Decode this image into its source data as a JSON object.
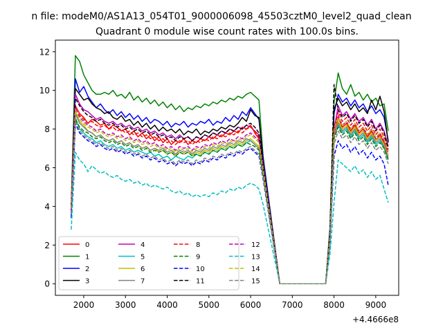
{
  "figure": {
    "suptitle": "n file: modeM0/AS1A13_054T01_9000006098_45503cztM0_level2_quad_clean",
    "title": "Quadrant 0 module wise count rates with 100.0s bins.",
    "offset_label": "+4.4666e8"
  },
  "chart_data": {
    "type": "line",
    "title": "Quadrant 0 module wise count rates with 100.0s bins.",
    "xlabel": "",
    "ylabel": "",
    "x_offset": 446660000,
    "xlim": [
      1320,
      9550
    ],
    "ylim": [
      -0.6,
      12.6
    ],
    "xticks": [
      2000,
      3000,
      4000,
      5000,
      6000,
      7000,
      8000,
      9000
    ],
    "yticks": [
      0,
      2,
      4,
      6,
      8,
      10,
      12
    ],
    "x_start": 1700,
    "x_step": 100,
    "gap": {
      "from": 6700,
      "to": 7800,
      "value": 0
    },
    "grid": false,
    "legend": {
      "placement": "lower-left",
      "columns": 4
    },
    "series": [
      {
        "name": "0",
        "color": "#ff0000",
        "dash": "solid",
        "seg1": [
          3.8,
          9.2,
          8.8,
          8.6,
          8.3,
          8.5,
          8.4,
          8.2,
          8.3,
          8.0,
          8.2,
          8.1,
          7.9,
          8.0,
          7.7,
          7.9,
          7.6,
          7.8,
          7.5,
          7.7,
          7.4,
          7.6,
          7.3,
          7.5,
          7.2,
          7.4,
          7.3,
          7.5,
          7.2,
          7.4,
          7.3,
          7.5,
          7.4,
          7.6,
          7.5,
          7.7,
          7.6,
          7.8,
          7.7,
          7.9,
          7.8,
          8.1,
          8.0,
          8.2,
          7.8,
          7.5,
          6.0
        ],
        "seg2": [
          2.3,
          7.6,
          8.6,
          8.1,
          8.3,
          7.9,
          8.2,
          7.8,
          8.0,
          7.6,
          7.9,
          7.4,
          7.7,
          7.3,
          6.8
        ]
      },
      {
        "name": "1",
        "color": "#008000",
        "dash": "solid",
        "seg1": [
          4.1,
          11.8,
          11.5,
          10.8,
          10.4,
          10.0,
          9.8,
          9.8,
          9.9,
          9.8,
          10.0,
          9.7,
          9.8,
          9.6,
          9.9,
          9.5,
          9.7,
          9.4,
          9.6,
          9.3,
          9.5,
          9.2,
          9.4,
          9.1,
          9.3,
          9.0,
          9.2,
          8.9,
          9.1,
          9.0,
          9.2,
          9.1,
          9.3,
          9.2,
          9.4,
          9.3,
          9.5,
          9.4,
          9.6,
          9.5,
          9.7,
          9.6,
          9.8,
          9.9,
          9.7,
          9.5,
          6.6
        ],
        "seg2": [
          2.9,
          9.4,
          10.9,
          10.1,
          9.8,
          10.3,
          9.7,
          9.9,
          9.5,
          9.8,
          9.4,
          9.6,
          9.2,
          9.3,
          7.9
        ]
      },
      {
        "name": "2",
        "color": "#0000ff",
        "dash": "solid",
        "seg1": [
          3.6,
          10.6,
          9.9,
          10.2,
          9.7,
          9.4,
          9.1,
          9.3,
          9.0,
          8.8,
          9.0,
          8.7,
          8.9,
          8.6,
          8.8,
          8.5,
          8.7,
          8.4,
          8.6,
          8.3,
          8.5,
          8.4,
          8.2,
          8.4,
          8.1,
          8.3,
          8.2,
          8.4,
          8.1,
          8.3,
          8.2,
          8.4,
          8.3,
          8.5,
          8.2,
          8.4,
          8.3,
          8.6,
          8.4,
          8.7,
          8.5,
          8.9,
          8.7,
          9.1,
          8.8,
          8.5,
          6.5
        ],
        "seg2": [
          2.7,
          8.8,
          9.8,
          9.4,
          9.6,
          9.2,
          9.5,
          9.1,
          9.3,
          8.9,
          9.2,
          8.8,
          9.0,
          8.6,
          7.4
        ]
      },
      {
        "name": "3",
        "color": "#000000",
        "dash": "solid",
        "seg1": [
          4.0,
          10.1,
          9.8,
          9.5,
          9.6,
          9.3,
          9.1,
          9.0,
          8.8,
          8.9,
          8.6,
          8.5,
          8.7,
          8.4,
          8.5,
          8.2,
          8.4,
          8.1,
          8.3,
          8.0,
          8.2,
          7.9,
          8.1,
          7.9,
          8.0,
          7.8,
          8.0,
          7.7,
          7.9,
          7.8,
          8.0,
          7.7,
          7.9,
          7.8,
          8.0,
          7.9,
          8.1,
          8.0,
          8.2,
          8.1,
          8.3,
          8.6,
          8.4,
          9.0,
          8.7,
          8.6,
          6.3
        ],
        "seg2": [
          2.6,
          9.0,
          9.6,
          9.2,
          9.4,
          9.0,
          9.3,
          8.9,
          9.1,
          8.8,
          9.5,
          9.0,
          9.7,
          8.9,
          7.3
        ]
      },
      {
        "name": "4",
        "color": "#bf00bf",
        "dash": "solid",
        "seg1": [
          3.9,
          9.8,
          9.3,
          9.0,
          8.9,
          8.7,
          8.5,
          8.6,
          8.4,
          8.3,
          8.4,
          8.2,
          8.3,
          8.1,
          8.2,
          8.0,
          8.1,
          7.9,
          8.0,
          7.8,
          7.9,
          7.7,
          7.8,
          7.6,
          7.7,
          7.5,
          7.7,
          7.5,
          7.6,
          7.4,
          7.6,
          7.5,
          7.7,
          7.6,
          7.8,
          7.7,
          7.9,
          7.8,
          8.0,
          7.9,
          8.1,
          8.0,
          8.2,
          8.1,
          7.9,
          7.7,
          6.2
        ],
        "seg2": [
          2.5,
          8.0,
          9.2,
          8.7,
          8.9,
          8.5,
          8.8,
          8.4,
          8.6,
          8.2,
          8.5,
          8.0,
          8.3,
          7.9,
          7.1
        ]
      },
      {
        "name": "5",
        "color": "#00bfbf",
        "dash": "solid",
        "seg1": [
          3.5,
          8.6,
          8.0,
          7.8,
          7.6,
          7.5,
          7.3,
          7.4,
          7.2,
          7.1,
          7.2,
          7.0,
          7.1,
          6.9,
          7.0,
          6.8,
          6.9,
          6.8,
          6.7,
          6.8,
          6.6,
          6.7,
          6.5,
          6.6,
          6.4,
          6.6,
          6.5,
          6.4,
          6.6,
          6.5,
          6.7,
          6.6,
          6.8,
          6.7,
          6.9,
          6.8,
          7.0,
          6.9,
          7.1,
          7.0,
          7.2,
          7.1,
          7.3,
          7.4,
          7.2,
          7.0,
          5.6
        ],
        "seg2": [
          2.2,
          7.6,
          8.2,
          7.8,
          8.0,
          7.6,
          7.9,
          7.5,
          7.7,
          7.3,
          7.6,
          7.2,
          7.4,
          7.0,
          6.4
        ]
      },
      {
        "name": "6",
        "color": "#bfbf00",
        "dash": "solid",
        "seg1": [
          3.7,
          8.9,
          8.4,
          8.2,
          7.9,
          7.8,
          7.6,
          7.7,
          7.5,
          7.4,
          7.5,
          7.3,
          7.4,
          7.2,
          7.3,
          7.1,
          7.2,
          7.0,
          7.1,
          6.9,
          7.0,
          6.8,
          6.9,
          6.7,
          6.8,
          6.6,
          6.8,
          6.7,
          6.8,
          6.6,
          6.8,
          6.7,
          6.9,
          6.8,
          7.0,
          6.9,
          7.1,
          7.0,
          7.2,
          7.1,
          7.3,
          7.2,
          7.4,
          7.5,
          7.3,
          7.1,
          5.8
        ],
        "seg2": [
          2.3,
          7.7,
          8.4,
          8.0,
          8.2,
          7.8,
          8.1,
          7.7,
          7.9,
          7.5,
          7.8,
          7.4,
          7.6,
          7.2,
          6.6
        ]
      },
      {
        "name": "7",
        "color": "#808080",
        "dash": "solid",
        "seg1": [
          3.8,
          8.8,
          8.3,
          8.1,
          7.9,
          7.8,
          7.6,
          7.7,
          7.5,
          7.4,
          7.5,
          7.3,
          7.4,
          7.2,
          7.3,
          7.1,
          7.2,
          7.0,
          7.1,
          6.9,
          7.0,
          6.9,
          7.0,
          6.8,
          6.9,
          6.7,
          6.9,
          6.8,
          6.9,
          6.7,
          6.9,
          6.8,
          7.0,
          6.9,
          7.1,
          7.0,
          7.2,
          7.1,
          7.3,
          7.2,
          7.4,
          7.3,
          7.5,
          7.4,
          7.2,
          7.0,
          5.7
        ],
        "seg2": [
          2.2,
          7.6,
          8.3,
          7.9,
          8.1,
          7.7,
          8.0,
          7.6,
          7.8,
          7.4,
          7.7,
          7.3,
          7.5,
          7.1,
          6.5
        ]
      },
      {
        "name": "8",
        "color": "#ff0000",
        "dash": "dashed",
        "seg1": [
          3.9,
          9.0,
          8.7,
          8.5,
          8.3,
          8.4,
          8.2,
          8.1,
          8.2,
          8.0,
          8.1,
          7.9,
          8.0,
          7.8,
          7.9,
          7.7,
          7.8,
          7.6,
          7.7,
          7.5,
          7.6,
          7.4,
          7.5,
          7.3,
          7.4,
          7.2,
          7.4,
          7.3,
          7.4,
          7.2,
          7.4,
          7.3,
          7.5,
          7.4,
          7.6,
          7.5,
          7.7,
          7.6,
          7.8,
          7.7,
          7.9,
          7.8,
          8.0,
          8.1,
          7.9,
          7.6,
          6.0
        ],
        "seg2": [
          2.4,
          7.9,
          8.9,
          8.4,
          8.6,
          8.2,
          8.5,
          8.1,
          8.3,
          7.9,
          8.2,
          7.7,
          8.0,
          7.6,
          6.9
        ]
      },
      {
        "name": "9",
        "color": "#008000",
        "dash": "dashed",
        "seg1": [
          3.7,
          8.5,
          8.1,
          7.9,
          7.8,
          7.6,
          7.5,
          7.6,
          7.4,
          7.3,
          7.4,
          7.2,
          7.3,
          7.1,
          7.2,
          7.0,
          7.1,
          6.9,
          7.0,
          6.8,
          6.9,
          6.8,
          6.9,
          6.7,
          6.8,
          6.6,
          6.8,
          6.7,
          6.8,
          6.6,
          6.7,
          6.6,
          6.8,
          6.7,
          6.9,
          6.8,
          7.0,
          6.9,
          7.1,
          7.0,
          7.2,
          7.1,
          7.3,
          7.2,
          7.1,
          6.9,
          5.7
        ],
        "seg2": [
          2.2,
          7.5,
          8.1,
          7.7,
          7.9,
          7.5,
          7.8,
          7.4,
          7.6,
          7.2,
          7.5,
          7.1,
          7.3,
          7.0,
          6.4
        ]
      },
      {
        "name": "10",
        "color": "#0000ff",
        "dash": "dashed",
        "seg1": [
          3.4,
          8.3,
          7.8,
          7.6,
          7.4,
          7.3,
          7.1,
          7.2,
          7.0,
          6.9,
          7.0,
          6.8,
          6.9,
          6.7,
          6.8,
          6.6,
          6.7,
          6.5,
          6.6,
          6.4,
          6.5,
          6.3,
          6.4,
          6.2,
          6.3,
          6.1,
          6.3,
          6.2,
          6.3,
          6.1,
          6.3,
          6.2,
          6.4,
          6.3,
          6.5,
          6.4,
          6.6,
          6.5,
          6.7,
          6.6,
          6.8,
          6.7,
          6.9,
          7.0,
          6.8,
          6.6,
          5.4
        ],
        "seg2": [
          2.0,
          6.6,
          7.4,
          7.0,
          7.2,
          6.8,
          7.1,
          6.7,
          6.9,
          6.5,
          6.8,
          6.4,
          6.6,
          6.2,
          5.1
        ]
      },
      {
        "name": "11",
        "color": "#000000",
        "dash": "dashed",
        "seg1": [
          4.0,
          9.6,
          9.2,
          8.9,
          8.7,
          8.6,
          8.4,
          8.5,
          8.3,
          8.2,
          8.3,
          8.1,
          8.2,
          8.0,
          8.1,
          7.9,
          8.0,
          7.8,
          7.9,
          7.7,
          7.8,
          7.6,
          7.7,
          7.5,
          7.6,
          7.4,
          7.6,
          7.5,
          7.6,
          7.4,
          7.6,
          7.5,
          7.7,
          7.6,
          7.8,
          7.7,
          7.9,
          7.8,
          8.0,
          7.9,
          8.1,
          8.0,
          8.2,
          8.3,
          8.1,
          7.8,
          6.1
        ],
        "seg2": [
          2.5,
          10.3,
          9.0,
          8.6,
          8.8,
          8.4,
          8.7,
          8.3,
          8.5,
          8.1,
          8.4,
          7.9,
          8.2,
          7.8,
          7.0
        ]
      },
      {
        "name": "12",
        "color": "#bf00bf",
        "dash": "dashed",
        "seg1": [
          3.8,
          9.1,
          8.6,
          8.4,
          8.2,
          8.1,
          7.9,
          8.0,
          7.8,
          7.7,
          7.8,
          7.6,
          7.7,
          7.5,
          7.6,
          7.4,
          7.5,
          7.3,
          7.4,
          7.2,
          7.3,
          7.1,
          7.2,
          7.0,
          7.1,
          6.9,
          7.1,
          7.0,
          7.1,
          6.9,
          7.1,
          7.0,
          7.2,
          7.1,
          7.3,
          7.2,
          7.4,
          7.3,
          7.5,
          7.4,
          7.6,
          7.5,
          7.7,
          7.8,
          7.6,
          7.4,
          5.9
        ],
        "seg2": [
          2.4,
          7.8,
          8.7,
          8.2,
          8.4,
          8.0,
          8.3,
          7.9,
          8.1,
          7.7,
          8.0,
          7.5,
          7.8,
          7.4,
          6.7
        ]
      },
      {
        "name": "13",
        "color": "#00bfbf",
        "dash": "dashed",
        "seg1": [
          2.8,
          6.8,
          6.4,
          6.2,
          5.8,
          6.1,
          5.9,
          5.7,
          5.8,
          5.6,
          5.5,
          5.6,
          5.4,
          5.3,
          5.4,
          5.2,
          5.3,
          5.1,
          5.2,
          5.0,
          5.1,
          5.0,
          4.9,
          5.0,
          4.8,
          4.7,
          4.8,
          4.6,
          4.7,
          4.5,
          4.6,
          4.5,
          4.6,
          4.5,
          4.7,
          4.6,
          4.8,
          4.7,
          4.9,
          4.8,
          5.0,
          4.9,
          5.1,
          5.2,
          5.1,
          4.9,
          4.1
        ],
        "seg2": [
          1.5,
          4.2,
          6.4,
          6.2,
          6.0,
          5.8,
          6.1,
          5.7,
          5.9,
          5.5,
          5.8,
          5.4,
          5.6,
          4.9,
          4.2
        ]
      },
      {
        "name": "14",
        "color": "#bfbf00",
        "dash": "dashed",
        "seg1": [
          3.9,
          9.0,
          8.5,
          8.3,
          8.1,
          8.0,
          7.8,
          7.9,
          7.7,
          7.6,
          7.7,
          7.5,
          7.6,
          7.4,
          7.5,
          7.3,
          7.4,
          7.2,
          7.3,
          7.1,
          7.2,
          7.0,
          7.1,
          6.9,
          7.0,
          6.8,
          7.0,
          6.9,
          7.0,
          6.8,
          7.0,
          6.9,
          7.1,
          7.0,
          7.2,
          7.1,
          7.3,
          7.2,
          7.4,
          7.3,
          7.5,
          7.4,
          7.6,
          7.7,
          7.5,
          7.3,
          5.9
        ],
        "seg2": [
          2.4,
          8.0,
          8.6,
          8.2,
          8.4,
          8.0,
          8.3,
          7.9,
          8.1,
          7.7,
          8.0,
          7.6,
          7.8,
          7.5,
          6.8
        ]
      },
      {
        "name": "15",
        "color": "#808080",
        "dash": "dashed",
        "seg1": [
          3.6,
          8.4,
          7.9,
          7.7,
          7.5,
          7.4,
          7.2,
          7.3,
          7.1,
          7.0,
          7.1,
          6.9,
          7.0,
          6.8,
          6.9,
          6.7,
          6.8,
          6.6,
          6.7,
          6.5,
          6.6,
          6.4,
          6.5,
          6.3,
          6.4,
          6.2,
          6.4,
          6.3,
          6.4,
          6.2,
          6.4,
          6.3,
          6.5,
          6.4,
          6.6,
          6.5,
          6.7,
          6.6,
          6.8,
          6.7,
          6.9,
          6.8,
          7.0,
          7.1,
          6.9,
          6.7,
          5.5
        ],
        "seg2": [
          2.1,
          7.2,
          7.9,
          7.5,
          7.7,
          7.3,
          7.6,
          7.2,
          7.4,
          7.0,
          7.3,
          6.9,
          7.1,
          6.8,
          6.2
        ]
      }
    ]
  }
}
